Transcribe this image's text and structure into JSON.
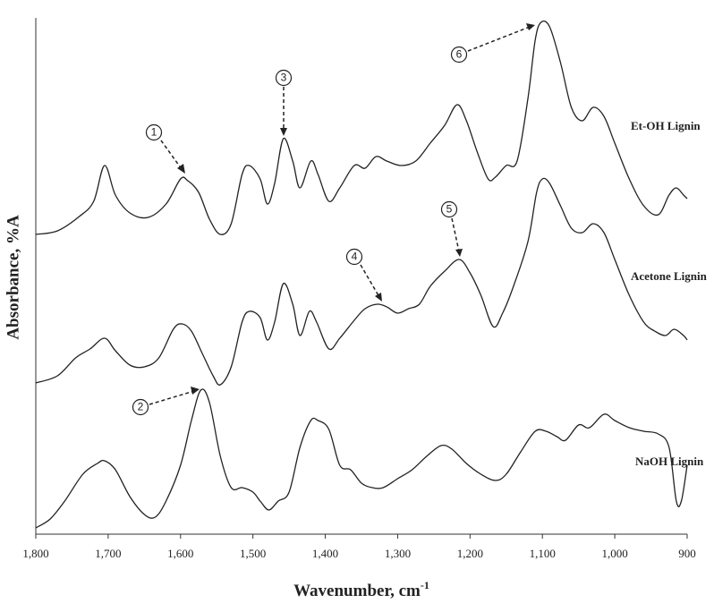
{
  "chart_data": {
    "type": "line",
    "x_label": "Wavenumber, cm",
    "x_label_sup": "-1",
    "y_label": "Absorbance, %A",
    "xlim": [
      1800,
      900
    ],
    "xticks": [
      {
        "value": 1800,
        "label": "1,800"
      },
      {
        "value": 1700,
        "label": "1,700"
      },
      {
        "value": 1600,
        "label": "1,600"
      },
      {
        "value": 1500,
        "label": "1,500"
      },
      {
        "value": 1400,
        "label": "1,400"
      },
      {
        "value": 1300,
        "label": "1,300"
      },
      {
        "value": 1200,
        "label": "1,200"
      },
      {
        "value": 1100,
        "label": "1,100"
      },
      {
        "value": 1000,
        "label": "1,000"
      },
      900
    ],
    "ylim": [
      0,
      577
    ],
    "annotations": [
      "1",
      "2",
      "3",
      "4",
      "5",
      "6"
    ],
    "series": [
      {
        "name": "Et-OH Lignin",
        "color": "#222222",
        "x": [
          1800,
          1770,
          1740,
          1720,
          1705,
          1690,
          1670,
          1645,
          1620,
          1600,
          1590,
          1575,
          1560,
          1545,
          1530,
          1515,
          1505,
          1490,
          1480,
          1470,
          1458,
          1445,
          1435,
          1420,
          1410,
          1395,
          1380,
          1360,
          1345,
          1330,
          1315,
          1295,
          1275,
          1255,
          1235,
          1218,
          1205,
          1190,
          1175,
          1165,
          1150,
          1135,
          1120,
          1110,
          1102,
          1090,
          1075,
          1060,
          1045,
          1030,
          1015,
          1000,
          980,
          960,
          940,
          925,
          915,
          905,
          900
        ],
        "values": [
          335,
          339,
          355,
          372,
          412,
          379,
          359,
          354,
          369,
          397,
          395,
          382,
          352,
          335,
          347,
          402,
          412,
          397,
          369,
          392,
          442,
          417,
          387,
          417,
          402,
          372,
          387,
          412,
          409,
          422,
          417,
          412,
          417,
          437,
          457,
          480,
          462,
          427,
          397,
          399,
          412,
          417,
          487,
          552,
          572,
          567,
          527,
          477,
          462,
          477,
          467,
          437,
          397,
          367,
          357,
          379,
          387,
          379,
          375
        ]
      },
      {
        "name": "Acetone Lignin",
        "color": "#222222",
        "x": [
          1800,
          1770,
          1745,
          1725,
          1705,
          1690,
          1670,
          1650,
          1630,
          1610,
          1598,
          1585,
          1570,
          1555,
          1545,
          1530,
          1515,
          1505,
          1490,
          1480,
          1470,
          1458,
          1445,
          1435,
          1422,
          1412,
          1395,
          1380,
          1360,
          1345,
          1328,
          1315,
          1300,
          1285,
          1270,
          1255,
          1235,
          1215,
          1200,
          1185,
          1168,
          1155,
          1140,
          1120,
          1108,
          1100,
          1090,
          1075,
          1060,
          1045,
          1030,
          1015,
          1000,
          980,
          960,
          945,
          930,
          918,
          905,
          900
        ],
        "values": [
          169,
          177,
          197,
          207,
          219,
          205,
          189,
          187,
          197,
          229,
          235,
          227,
          202,
          177,
          167,
          187,
          237,
          249,
          242,
          217,
          237,
          280,
          257,
          222,
          249,
          237,
          207,
          219,
          239,
          252,
          257,
          254,
          247,
          252,
          257,
          277,
          294,
          307,
          292,
          267,
          232,
          247,
          277,
          327,
          382,
          397,
          392,
          367,
          342,
          337,
          347,
          337,
          307,
          267,
          237,
          227,
          222,
          229,
          222,
          217
        ]
      },
      {
        "name": "NaOH Lignin",
        "color": "#222222",
        "x": [
          1800,
          1780,
          1760,
          1735,
          1715,
          1705,
          1690,
          1670,
          1650,
          1635,
          1620,
          1600,
          1585,
          1572,
          1560,
          1545,
          1530,
          1515,
          1500,
          1490,
          1478,
          1465,
          1450,
          1435,
          1420,
          1410,
          1395,
          1380,
          1365,
          1350,
          1335,
          1320,
          1300,
          1280,
          1260,
          1240,
          1225,
          1205,
          1185,
          1165,
          1150,
          1130,
          1110,
          1095,
          1080,
          1068,
          1050,
          1035,
          1015,
          1000,
          980,
          960,
          940,
          925,
          915,
          908,
          900
        ],
        "values": [
          7,
          17,
          37,
          67,
          79,
          82,
          72,
          42,
          22,
          19,
          37,
          77,
          127,
          161,
          147,
          87,
          52,
          52,
          47,
          37,
          27,
          37,
          47,
          97,
          127,
          127,
          117,
          77,
          72,
          57,
          52,
          52,
          62,
          72,
          87,
          99,
          95,
          79,
          67,
          60,
          67,
          92,
          115,
          115,
          109,
          105,
          122,
          119,
          134,
          127,
          119,
          115,
          112,
          97,
          37,
          37,
          77
        ]
      }
    ]
  }
}
